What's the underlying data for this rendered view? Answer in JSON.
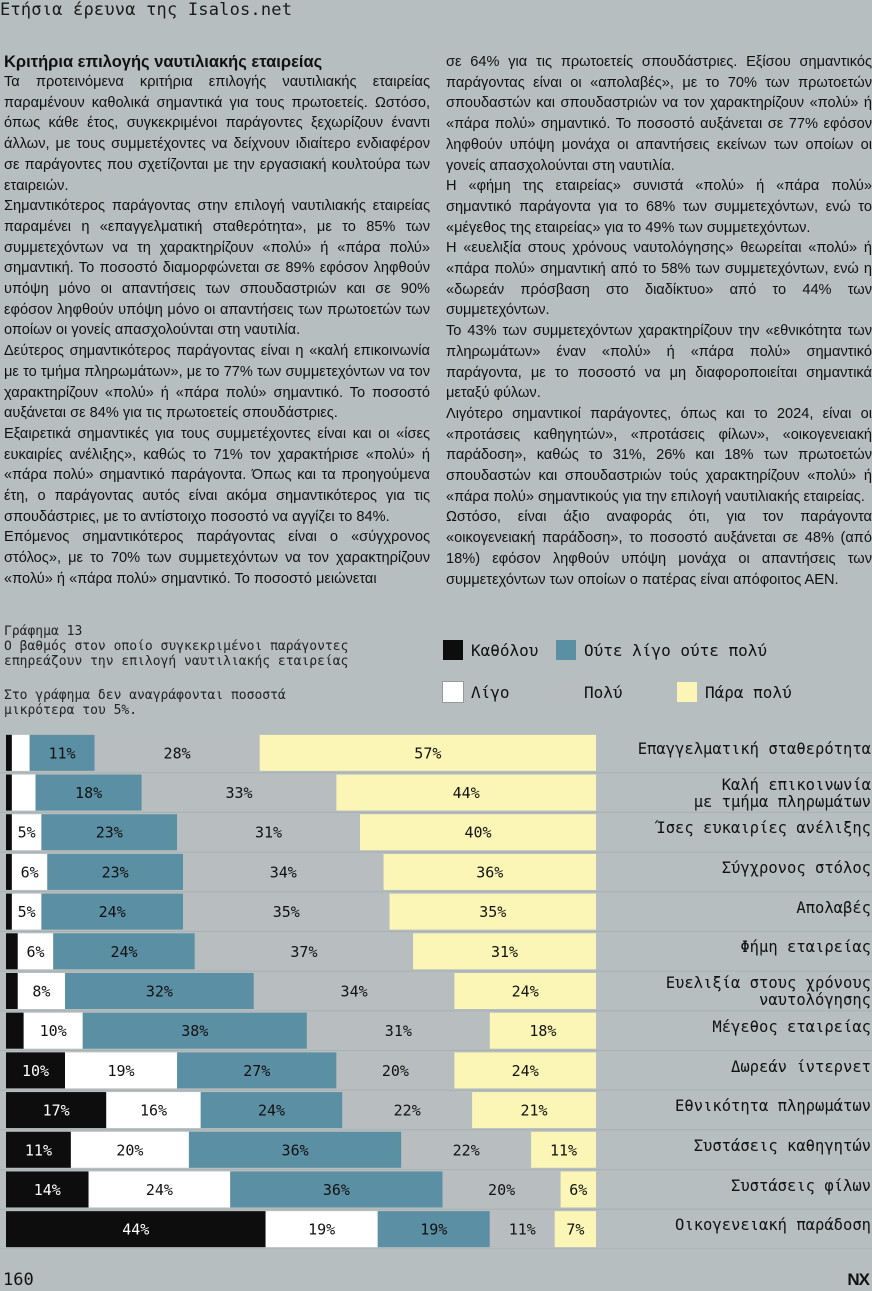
{
  "header": {
    "title": "Ετήσια έρευνα της Isalos.net"
  },
  "article": {
    "heading": "Κριτήρια επιλογής ναυτιλιακής εταιρείας",
    "left_paragraphs": [
      "Τα προτεινόμενα κριτήρια επιλογής ναυτιλιακής εταιρείας παραμένουν καθολικά σημαντικά για τους πρωτοετείς. Ωστόσο, όπως κάθε έτος, συγκεκριμένοι παράγοντες ξεχωρίζουν έναντι άλλων, με τους συμμετέχοντες να δείχνουν ιδιαίτερο ενδιαφέρον σε παράγοντες που σχετίζονται με την εργασιακή κουλτούρα των εταιρειών.",
      "Σημαντικότερος παράγοντας στην επιλογή ναυτιλιακής εταιρείας παραμένει η «επαγγελματική σταθερότητα», με το 85% των συμμετεχόντων να τη χαρακτηρίζουν «πολύ» ή «πάρα πολύ» σημαντική. Το ποσοστό διαμορφώνεται σε 89% εφόσον ληφθούν υπόψη μόνο οι απαντήσεις των σπουδαστριών και σε 90% εφόσον ληφθούν υπόψη μόνο οι απαντήσεις των πρωτοετών των οποίων οι γονείς απασχολούνται στη ναυτιλία.",
      "Δεύτερος σημαντικότερος παράγοντας είναι η «καλή επικοινωνία με το τμήμα πληρωμάτων», με το 77% των συμμετεχόντων να τον χαρακτηρίζουν «πολύ» ή «πάρα πολύ» σημαντικό. Το ποσοστό αυξάνεται σε 84% για τις πρωτοετείς σπουδάστριες.",
      "Εξαιρετικά σημαντικές για τους συμμετέχοντες είναι και οι «ίσες ευκαιρίες ανέλιξης», καθώς το 71% τον χαρακτήρισε «πολύ» ή «πάρα πολύ» σημαντικό παράγοντα. Όπως και τα προηγούμενα έτη, ο παράγοντας αυτός είναι ακόμα σημαντικότερος για τις σπουδάστριες, με το αντίστοιχο ποσοστό να αγγίζει το 84%.",
      "Επόμενος σημαντικότερος παράγοντας είναι ο «σύγχρονος στόλος», με το 70% των συμμετεχόντων να τον χαρακτηρίζουν «πολύ» ή «πάρα πολύ» σημαντικό. Το ποσοστό μειώνεται"
    ],
    "right_paragraphs": [
      "σε 64% για τις πρωτοετείς σπουδάστριες. Εξίσου σημαντικός παράγοντας είναι οι «απολαβές», με το 70% των πρωτοετών σπουδαστών και σπουδαστριών να τον χαρακτηρίζουν «πολύ» ή «πάρα πολύ» σημαντικό. Το ποσοστό αυξάνεται σε 77% εφόσον ληφθούν υπόψη μονάχα οι απαντήσεις εκείνων των οποίων οι γονείς απασχολούνται στη ναυτιλία.",
      "Η «φήμη της εταιρείας» συνιστά «πολύ» ή «πάρα πολύ» σημαντικό παράγοντα για το 68% των συμμετεχόντων, ενώ το «μέγεθος της εταιρείας» για το 49% των συμμετεχόντων.",
      "Η «ευελιξία στους χρόνους ναυτολόγησης» θεωρείται «πολύ» ή «πάρα πολύ» σημαντική από το 58% των συμμετεχόντων, ενώ η «δωρεάν πρόσβαση στο διαδίκτυο» από το 44% των συμμετεχόντων.",
      "Το 43% των συμμετεχόντων χαρακτηρίζουν την «εθνικότητα των πληρωμάτων» έναν «πολύ» ή «πάρα πολύ» σημαντικό παράγοντα, με το ποσοστό να μη διαφοροποιείται σημαντικά μεταξύ φύλων.",
      "Λιγότερο σημαντικοί παράγοντες, όπως και το 2024, είναι οι «προτάσεις καθηγητών», «προτάσεις φίλων», «οικογενειακή παράδοση», καθώς το 31%, 26% και 18% των πρωτοετών σπουδαστών και σπουδαστριών τούς χαρακτηρίζουν «πολύ» ή «πάρα πολύ» σημαντικούς για την επιλογή ναυτιλιακής εταιρείας.",
      "Ωστόσο, είναι άξιο αναφοράς ότι, για τον παράγοντα «οικογενειακή παράδοση», το ποσοστό αυξάνεται σε 48% (από 18%) εφόσον ληφθούν υπόψη μονάχα οι απαντήσεις των συμμετεχόντων των οποίων ο πατέρας είναι απόφοιτος ΑΕΝ."
    ]
  },
  "graph": {
    "caption": "Γράφημα 13\nΟ βαθμός στον οποίο συγκεκριμένοι παράγοντες\nεπηρεάζουν την επιλογή ναυτιλιακής εταιρείας",
    "note": "Στο γράφημα δεν αναγράφονται ποσοστά\nμικρότερα του 5%."
  },
  "chart_data": {
    "type": "bar",
    "orientation": "horizontal-stacked-100",
    "title": "Ο βαθμός στον οποίο συγκεκριμένοι παράγοντες επηρεάζουν την επιλογή ναυτιλιακής εταιρείας",
    "legend": [
      {
        "name": "Καθόλου",
        "color": "#0d0d0d"
      },
      {
        "name": "Ούτε λίγο ούτε πολύ",
        "color": "#5b8fa3"
      },
      {
        "name": "Λίγο",
        "color": "#ffffff"
      },
      {
        "name": "Πολύ",
        "color": "#b8bec0"
      },
      {
        "name": "Πάρα πολύ",
        "color": "#fbf6b6"
      }
    ],
    "legend_position": "top-right",
    "categories": [
      "Επαγγελματική σταθερότητα",
      "Καλή επικοινωνία\nμε τμήμα πληρωμάτων",
      "Ίσες ευκαιρίες ανέλιξης",
      "Σύγχρονος στόλος",
      "Απολαβές",
      "Φήμη εταιρείας",
      "Ευελιξία στους χρόνους\nναυτολόγησης",
      "Μέγεθος εταιρείας",
      "Δωρεάν ίντερνετ",
      "Εθνικότητα πληρωμάτων",
      "Συστάσεις καθηγητών",
      "Συστάσεις φίλων",
      "Οικογενειακή παράδοση"
    ],
    "series": [
      {
        "name": "Καθόλου",
        "values": [
          1,
          1,
          1,
          1,
          1,
          2,
          2,
          3,
          10,
          17,
          11,
          14,
          44
        ]
      },
      {
        "name": "Λίγο",
        "values": [
          3,
          4,
          5,
          6,
          5,
          6,
          8,
          10,
          19,
          16,
          20,
          24,
          19
        ]
      },
      {
        "name": "Ούτε λίγο ούτε πολύ",
        "values": [
          11,
          18,
          23,
          23,
          24,
          24,
          32,
          38,
          27,
          24,
          36,
          36,
          19
        ]
      },
      {
        "name": "Πολύ",
        "values": [
          28,
          33,
          31,
          34,
          35,
          37,
          34,
          31,
          20,
          22,
          22,
          20,
          11
        ]
      },
      {
        "name": "Πάρα πολύ",
        "values": [
          57,
          44,
          40,
          36,
          35,
          31,
          24,
          18,
          24,
          21,
          11,
          6,
          7
        ]
      }
    ],
    "label_threshold_percent": 5,
    "xlim": [
      0,
      100
    ]
  },
  "footer": {
    "page_number": "160",
    "brand": "NX"
  }
}
